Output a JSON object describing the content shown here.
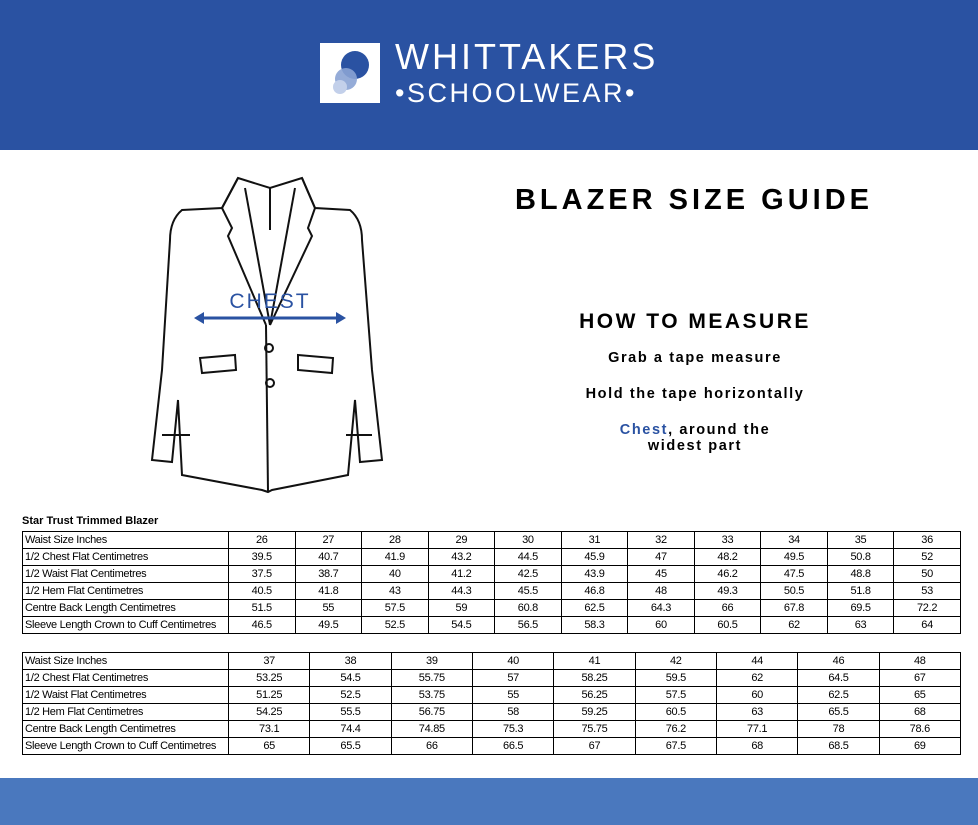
{
  "header": {
    "brand_line1": "WHITTAKERS",
    "brand_line2": "•SCHOOLWEAR•"
  },
  "illustration": {
    "label": "CHEST"
  },
  "title": "BLAZER SIZE GUIDE",
  "how_to": {
    "heading": "HOW TO MEASURE",
    "steps": [
      "Grab a tape measure",
      "Hold the tape horizontally"
    ],
    "last_step": {
      "highlight": "Chest",
      "line1": ", around the",
      "line2": "widest part"
    }
  },
  "tables": [
    {
      "caption": "Star Trust Trimmed Blazer",
      "rows": [
        [
          "Waist Size Inches",
          "26",
          "27",
          "28",
          "29",
          "30",
          "31",
          "32",
          "33",
          "34",
          "35",
          "36"
        ],
        [
          "1/2 Chest Flat Centimetres",
          "39.5",
          "40.7",
          "41.9",
          "43.2",
          "44.5",
          "45.9",
          "47",
          "48.2",
          "49.5",
          "50.8",
          "52"
        ],
        [
          "1/2 Waist Flat Centimetres",
          "37.5",
          "38.7",
          "40",
          "41.2",
          "42.5",
          "43.9",
          "45",
          "46.2",
          "47.5",
          "48.8",
          "50"
        ],
        [
          "1/2 Hem Flat Centimetres",
          "40.5",
          "41.8",
          "43",
          "44.3",
          "45.5",
          "46.8",
          "48",
          "49.3",
          "50.5",
          "51.8",
          "53"
        ],
        [
          "Centre Back Length Centimetres",
          "51.5",
          "55",
          "57.5",
          "59",
          "60.8",
          "62.5",
          "64.3",
          "66",
          "67.8",
          "69.5",
          "72.2"
        ],
        [
          "Sleeve Length Crown to Cuff Centimetres",
          "46.5",
          "49.5",
          "52.5",
          "54.5",
          "56.5",
          "58.3",
          "60",
          "60.5",
          "62",
          "63",
          "64"
        ]
      ]
    },
    {
      "rows": [
        [
          "Waist Size Inches",
          "37",
          "38",
          "39",
          "40",
          "41",
          "42",
          "44",
          "46",
          "48"
        ],
        [
          "1/2 Chest Flat Centimetres",
          "53.25",
          "54.5",
          "55.75",
          "57",
          "58.25",
          "59.5",
          "62",
          "64.5",
          "67"
        ],
        [
          "1/2 Waist Flat Centimetres",
          "51.25",
          "52.5",
          "53.75",
          "55",
          "56.25",
          "57.5",
          "60",
          "62.5",
          "65"
        ],
        [
          "1/2 Hem Flat Centimetres",
          "54.25",
          "55.5",
          "56.75",
          "58",
          "59.25",
          "60.5",
          "63",
          "65.5",
          "68"
        ],
        [
          "Centre Back Length Centimetres",
          "73.1",
          "74.4",
          "74.85",
          "75.3",
          "75.75",
          "76.2",
          "77.1",
          "78",
          "78.6"
        ],
        [
          "Sleeve Length Crown to Cuff Centimetres",
          "65",
          "65.5",
          "66",
          "66.5",
          "67",
          "67.5",
          "68",
          "68.5",
          "69"
        ]
      ]
    }
  ]
}
